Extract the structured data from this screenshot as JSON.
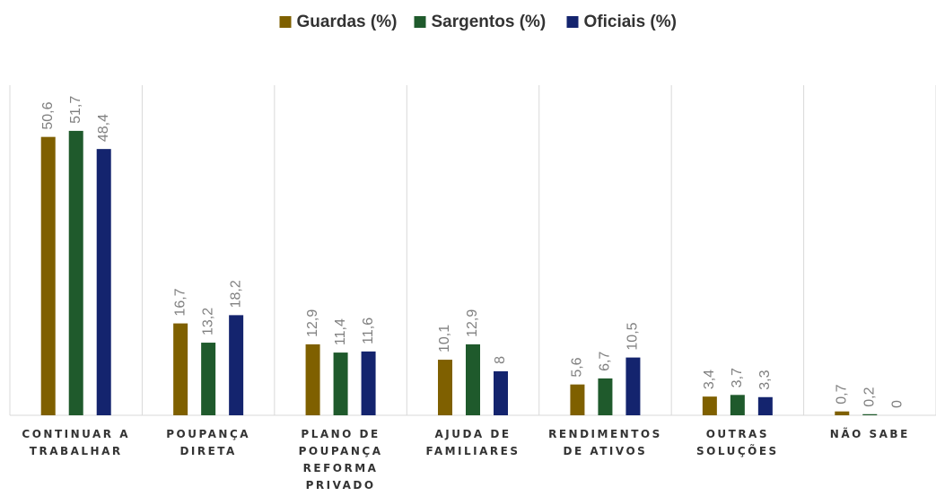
{
  "chart_data": {
    "type": "bar",
    "categories": [
      "CONTINUAR A TRABALHAR",
      "POUPANÇA DIRETA",
      "PLANO DE POUPANÇA REFORMA PRIVADO",
      "AJUDA DE FAMILIARES",
      "RENDIMENTOS DE ATIVOS",
      "OUTRAS SOLUÇÕES",
      "NÃO SABE"
    ],
    "series": [
      {
        "name": "Guardas (%)",
        "color": "#7f6000",
        "values": [
          50.6,
          16.7,
          12.9,
          10.1,
          5.6,
          3.4,
          0.7
        ],
        "value_labels": [
          "50,6",
          "16,7",
          "12,9",
          "10,1",
          "5,6",
          "3,4",
          "0,7"
        ]
      },
      {
        "name": "Sargentos (%)",
        "color": "#1f5a2c",
        "values": [
          51.7,
          13.2,
          11.4,
          12.9,
          6.7,
          3.7,
          0.2
        ],
        "value_labels": [
          "51,7",
          "13,2",
          "11,4",
          "12,9",
          "6,7",
          "3,7",
          "0,2"
        ]
      },
      {
        "name": "Oficiais (%)",
        "color": "#14246e",
        "values": [
          48.4,
          18.2,
          11.6,
          8,
          10.5,
          3.3,
          0
        ],
        "value_labels": [
          "48,4",
          "18,2",
          "11,6",
          "8",
          "10,5",
          "3,3",
          "0"
        ]
      }
    ],
    "ylim": [
      0,
      60
    ],
    "legend": "top"
  }
}
